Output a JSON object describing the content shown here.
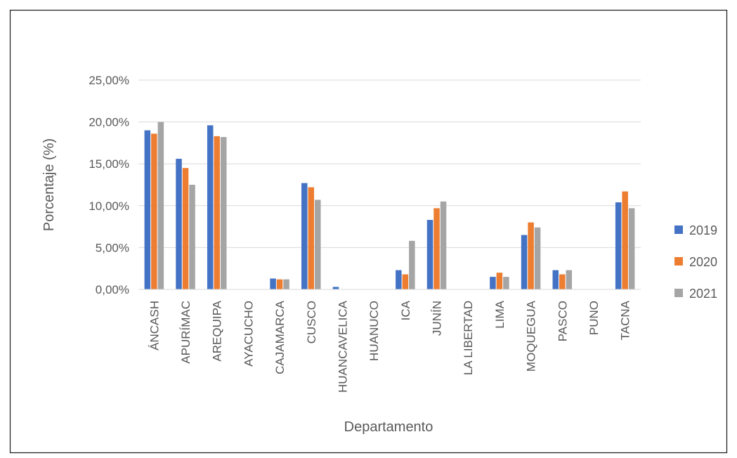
{
  "chart_data": {
    "type": "bar",
    "title": "",
    "xlabel": "Departamento",
    "ylabel": "Porcentaje (%)",
    "ylim": [
      0,
      25
    ],
    "yticks": [
      0,
      5,
      10,
      15,
      20,
      25
    ],
    "ytick_labels": [
      "0,00%",
      "5,00%",
      "10,00%",
      "15,00%",
      "20,00%",
      "25,00%"
    ],
    "grid": true,
    "legend_position": "right",
    "categories": [
      "ÁNCASH",
      "APURÍMAC",
      "AREQUIPA",
      "AYACUCHO",
      "CAJAMARCA",
      "CUSCO",
      "HUANCAVELICA",
      "HUANUCO",
      "ICA",
      "JUNÍN",
      "LA LIBERTAD",
      "LIMA",
      "MOQUEGUA",
      "PASCO",
      "PUNO",
      "TACNA"
    ],
    "series": [
      {
        "name": "2019",
        "color": "#4472C4",
        "values": [
          19.0,
          15.6,
          19.6,
          0,
          1.3,
          12.7,
          0.3,
          0,
          2.3,
          8.3,
          0,
          1.5,
          6.5,
          2.3,
          0,
          10.4
        ]
      },
      {
        "name": "2020",
        "color": "#ED7D31",
        "values": [
          18.6,
          14.5,
          18.3,
          0,
          1.2,
          12.2,
          0,
          0,
          1.8,
          9.7,
          0,
          2.0,
          8.0,
          1.8,
          0,
          11.7
        ]
      },
      {
        "name": "2021",
        "color": "#A5A5A5",
        "values": [
          20.0,
          12.5,
          18.2,
          0,
          1.2,
          10.7,
          0,
          0,
          5.8,
          10.5,
          0,
          1.5,
          7.4,
          2.3,
          0,
          9.7
        ]
      }
    ]
  }
}
